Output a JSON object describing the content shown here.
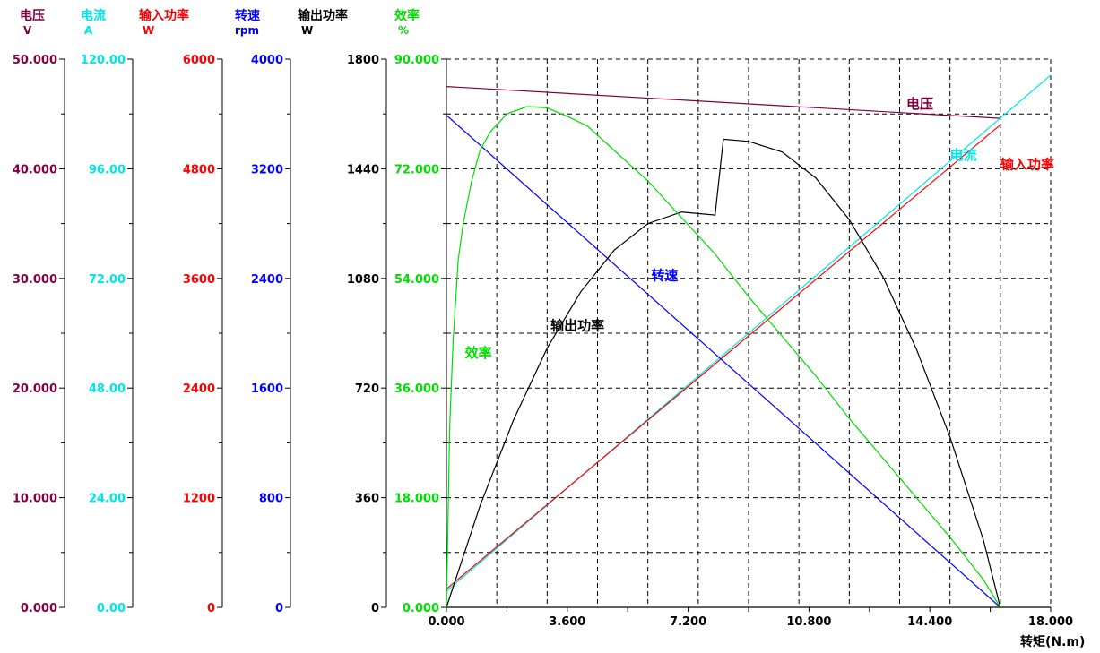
{
  "colors": {
    "voltage": "#800040",
    "current": "#00e6e6",
    "input_power": "#ff0000",
    "speed": "#0000ff",
    "output_power": "#000000",
    "efficiency": "#00dd00",
    "grid": "#000000"
  },
  "chart_data": {
    "type": "line",
    "grid": true,
    "xaxis": {
      "label": "转矩(N.m)",
      "range": [
        0,
        18
      ],
      "ticks": [
        0,
        3.6,
        7.2,
        10.8,
        14.4,
        18
      ],
      "tick_labels": [
        "0.000",
        "3.600",
        "7.200",
        "10.800",
        "14.400",
        "18.000"
      ]
    },
    "axes": [
      {
        "key": "voltage",
        "label": "电压",
        "unit": "V",
        "color": "#800040",
        "range": [
          0,
          50
        ],
        "tick_labels": [
          "0.000",
          "10.000",
          "20.000",
          "30.000",
          "40.000",
          "50.000"
        ]
      },
      {
        "key": "current",
        "label": "电流",
        "unit": "A",
        "color": "#00e6e6",
        "range": [
          0,
          120
        ],
        "tick_labels": [
          "0.00",
          "24.00",
          "48.00",
          "72.00",
          "96.00",
          "120.00"
        ]
      },
      {
        "key": "input_power",
        "label": "输入功率",
        "unit": "W",
        "color": "#ff0000",
        "range": [
          0,
          6000
        ],
        "tick_labels": [
          "0",
          "1200",
          "2400",
          "3600",
          "4800",
          "6000"
        ]
      },
      {
        "key": "speed",
        "label": "转速",
        "unit": "rpm",
        "color": "#0000ff",
        "range": [
          0,
          4000
        ],
        "tick_labels": [
          "0",
          "800",
          "1600",
          "2400",
          "3200",
          "4000"
        ]
      },
      {
        "key": "output_power",
        "label": "输出功率",
        "unit": "W",
        "color": "#000000",
        "range": [
          0,
          1800
        ],
        "tick_labels": [
          "0",
          "360",
          "720",
          "1080",
          "1440",
          "1800"
        ]
      },
      {
        "key": "efficiency",
        "label": "效率",
        "unit": "%",
        "color": "#00dd00",
        "range": [
          0,
          90
        ],
        "tick_labels": [
          "0.000",
          "18.000",
          "36.000",
          "54.000",
          "72.000",
          "90.000"
        ]
      }
    ],
    "series": [
      {
        "name": "电压",
        "axis": "voltage",
        "x": [
          0,
          16.5
        ],
        "y": [
          47.5,
          44.6
        ]
      },
      {
        "name": "电流",
        "axis": "current",
        "x": [
          0,
          18
        ],
        "y": [
          3.5,
          116.5
        ]
      },
      {
        "name": "输入功率",
        "axis": "input_power",
        "x": [
          0,
          16.5
        ],
        "y": [
          200,
          5280
        ]
      },
      {
        "name": "转速",
        "axis": "speed",
        "x": [
          0,
          16.5
        ],
        "y": [
          3590,
          0
        ]
      },
      {
        "name": "输出功率",
        "axis": "output_power",
        "x": [
          0,
          1,
          2,
          3,
          4,
          5,
          6,
          7,
          8,
          8.25,
          9,
          10,
          11,
          12,
          13,
          14,
          15,
          16,
          16.5
        ],
        "y": [
          0,
          333,
          616,
          851,
          1036,
          1173,
          1260,
          1298,
          1288,
          1537,
          1530,
          1495,
          1410,
          1273,
          1086,
          848,
          559,
          219,
          0
        ]
      },
      {
        "name": "效率",
        "axis": "efficiency",
        "x": [
          0,
          0.1,
          0.2,
          0.35,
          0.5,
          0.75,
          1,
          1.3,
          1.8,
          2.4,
          3,
          3.6,
          4.2,
          5,
          6,
          7,
          8,
          9,
          10,
          11,
          12,
          13,
          14,
          15,
          16,
          16.5
        ],
        "y": [
          0,
          30,
          44,
          57,
          63,
          70,
          75,
          78,
          81,
          82.2,
          82,
          80.6,
          79,
          75,
          70,
          64,
          58,
          51,
          44.5,
          38,
          31,
          24.5,
          18,
          11.5,
          4.5,
          0
        ]
      }
    ],
    "annotations": [
      {
        "text": "电压",
        "axis": "voltage",
        "x": 13.7,
        "y": 45.5
      },
      {
        "text": "电流",
        "axis": "current",
        "x": 15.0,
        "y": 98.0
      },
      {
        "text": "输入功率",
        "axis": "input_power",
        "x": 16.5,
        "y": 4800
      },
      {
        "text": "转速",
        "axis": "speed",
        "x": 6.1,
        "y": 2390
      },
      {
        "text": "输出功率",
        "axis": "output_power",
        "x": 3.1,
        "y": 910
      },
      {
        "text": "效率",
        "axis": "efficiency",
        "x": 0.55,
        "y": 41.0
      }
    ]
  }
}
